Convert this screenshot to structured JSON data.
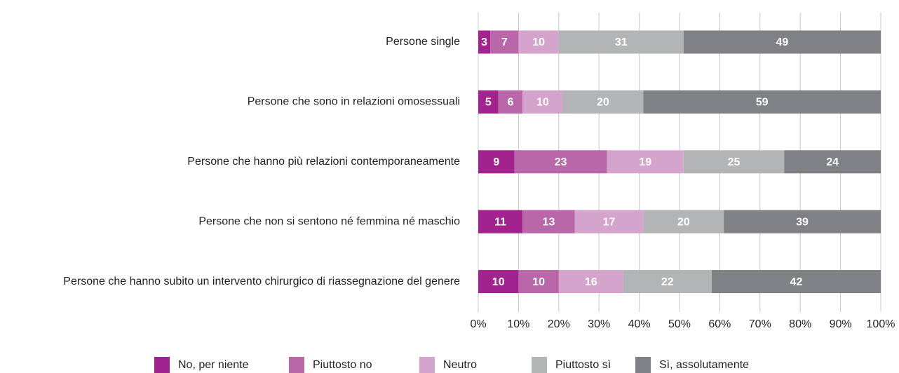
{
  "chart_data": {
    "type": "bar",
    "orientation": "horizontal",
    "stacked": true,
    "categories": [
      "Persone single",
      "Persone che sono in relazioni omosessuali",
      "Persone che hanno più relazioni contemporaneamente",
      "Persone che non si sentono né femmina né maschio",
      "Persone che hanno subito un intervento chirurgico di riassegnazione del genere"
    ],
    "series": [
      {
        "name": "No, per niente",
        "color": "#a3238e",
        "values": [
          3,
          5,
          9,
          11,
          10
        ]
      },
      {
        "name": "Piuttosto no",
        "color": "#b967a8",
        "values": [
          7,
          6,
          23,
          13,
          10
        ]
      },
      {
        "name": "Neutro",
        "color": "#d5a4cc",
        "values": [
          10,
          10,
          19,
          17,
          16
        ]
      },
      {
        "name": "Piuttosto sì",
        "color": "#b3b4b6",
        "values": [
          31,
          20,
          25,
          20,
          22
        ]
      },
      {
        "name": "Sì, assolutamente",
        "color": "#808184",
        "values": [
          49,
          59,
          24,
          39,
          42
        ]
      }
    ],
    "xlim": [
      0,
      100
    ],
    "xticks": [
      {
        "value": 0,
        "label": "0%"
      },
      {
        "value": 10,
        "label": "10%"
      },
      {
        "value": 20,
        "label": "20%"
      },
      {
        "value": 30,
        "label": "30%"
      },
      {
        "value": 40,
        "label": "40%"
      },
      {
        "value": 50,
        "label": "50%"
      },
      {
        "value": 60,
        "label": "60%"
      },
      {
        "value": 70,
        "label": "70%"
      },
      {
        "value": 80,
        "label": "80%"
      },
      {
        "value": 90,
        "label": "90%"
      },
      {
        "value": 100,
        "label": "100%"
      }
    ],
    "grid": true,
    "legend": "bottom"
  }
}
